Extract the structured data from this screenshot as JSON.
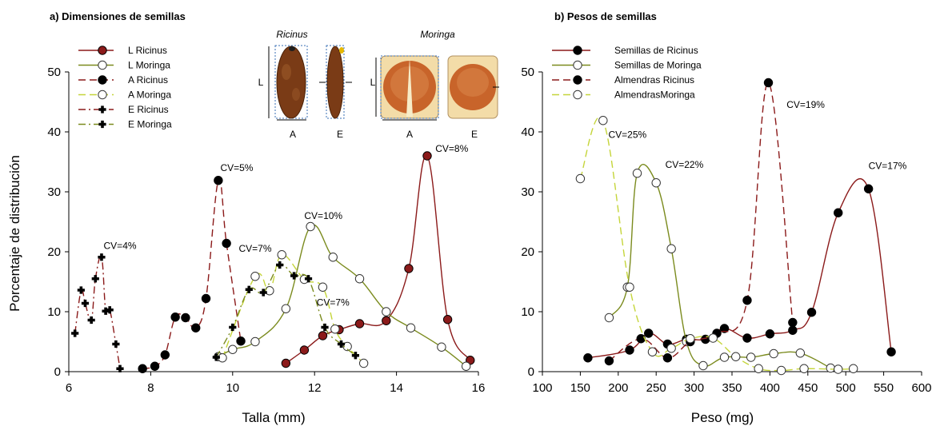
{
  "chart_data": [
    {
      "type": "line",
      "title": "a) Dimensiones de semillas",
      "xlabel": "Talla (mm)",
      "ylabel": "Porcentaje de distribución",
      "xlim": [
        6,
        16
      ],
      "ylim": [
        0,
        50
      ],
      "xticks": [
        "6",
        "8",
        "10",
        "12",
        "14",
        "16"
      ],
      "yticks": [
        "0",
        "10",
        "20",
        "30",
        "40",
        "50"
      ],
      "legend_position": "top-left",
      "series": [
        {
          "name": "L Ricinus",
          "color": "#8B1A1A",
          "dash": "solid",
          "marker": "filled-red",
          "x": [
            11.3,
            11.75,
            12.2,
            12.6,
            13.1,
            13.75,
            14.3,
            14.75,
            15.25,
            15.8
          ],
          "y": [
            1.4,
            3.6,
            6.0,
            7.0,
            8.0,
            8.5,
            17.2,
            36.0,
            8.7,
            1.9
          ]
        },
        {
          "name": "L Moringa",
          "color": "#7B8B1E",
          "dash": "solid",
          "marker": "open",
          "x": [
            9.65,
            10.0,
            10.55,
            11.3,
            11.9,
            12.45,
            13.1,
            13.75,
            14.35,
            15.1,
            15.7
          ],
          "y": [
            2.5,
            3.7,
            5.0,
            10.5,
            24.2,
            19.1,
            15.5,
            10.0,
            7.3,
            4.1,
            0.9
          ]
        },
        {
          "name": "A Ricinus",
          "color": "#8B1A1A",
          "dash": "long",
          "marker": "filled-black",
          "x": [
            7.8,
            8.1,
            8.35,
            8.6,
            8.85,
            9.1,
            9.35,
            9.65,
            9.85,
            10.2
          ],
          "y": [
            0.5,
            0.9,
            2.8,
            9.1,
            9.0,
            7.3,
            12.2,
            31.9,
            21.4,
            5.1
          ]
        },
        {
          "name": "A Moringa",
          "color": "#C5D53A",
          "dash": "long",
          "marker": "open",
          "x": [
            9.75,
            10.55,
            10.9,
            11.2,
            11.75,
            12.2,
            12.5,
            12.8,
            13.2
          ],
          "y": [
            2.3,
            15.9,
            13.5,
            19.5,
            15.4,
            14.1,
            7.1,
            4.2,
            1.4
          ]
        },
        {
          "name": "E Ricinus",
          "color": "#8B1A1A",
          "dash": "dashdot",
          "marker": "cross",
          "x": [
            6.15,
            6.3,
            6.4,
            6.55,
            6.65,
            6.8,
            6.9,
            7.0,
            7.15,
            7.25
          ],
          "y": [
            6.4,
            13.6,
            11.4,
            8.6,
            15.5,
            19.1,
            10.1,
            10.3,
            4.6,
            0.5
          ]
        },
        {
          "name": "E Moringa",
          "color": "#7B8B1E",
          "dash": "dashdot",
          "marker": "cross",
          "x": [
            9.6,
            10.0,
            10.4,
            10.75,
            11.15,
            11.5,
            11.85,
            12.25,
            12.65,
            13.0
          ],
          "y": [
            2.4,
            7.4,
            13.7,
            13.2,
            17.8,
            16.0,
            15.5,
            7.4,
            4.6,
            2.7
          ]
        }
      ],
      "annotations": [
        {
          "text": "CV=4%",
          "x": 6.85,
          "y": 20.5
        },
        {
          "text": "CV=5%",
          "x": 9.7,
          "y": 33.5
        },
        {
          "text": "CV=10%",
          "x": 11.75,
          "y": 25.5
        },
        {
          "text": "CV=7%",
          "x": 10.15,
          "y": 20.0
        },
        {
          "text": "CV=7%",
          "x": 12.05,
          "y": 11.0
        },
        {
          "text": "CV=8%",
          "x": 14.95,
          "y": 36.7
        }
      ],
      "inset": {
        "ricinus_label": "Ricinus",
        "moringa_label": "Moringa",
        "L": "L",
        "A": "A",
        "E": "E"
      }
    },
    {
      "type": "line",
      "title": "b) Pesos de semillas",
      "xlabel": "Peso (mg)",
      "ylabel": "",
      "xlim": [
        100,
        600
      ],
      "ylim": [
        0,
        50
      ],
      "xticks": [
        "100",
        "150",
        "200",
        "250",
        "300",
        "350",
        "400",
        "450",
        "500",
        "550",
        "600"
      ],
      "yticks": [
        "0",
        "10",
        "20",
        "30",
        "40",
        "50"
      ],
      "legend_position": "top-left",
      "series": [
        {
          "name": "Semillas de Ricinus",
          "color": "#8B1A1A",
          "dash": "solid",
          "marker": "filled-black",
          "x": [
            160,
            215,
            240,
            265,
            290,
            315,
            340,
            370,
            400,
            430,
            455,
            490,
            530,
            560
          ],
          "y": [
            2.3,
            3.6,
            6.4,
            4.6,
            5.4,
            5.4,
            7.2,
            5.6,
            6.3,
            6.9,
            9.9,
            26.5,
            30.5,
            3.3
          ]
        },
        {
          "name": "Semillas de Moringa",
          "color": "#7B8B1E",
          "dash": "solid",
          "marker": "open",
          "x": [
            188,
            212,
            225,
            250,
            270,
            290,
            312,
            340,
            375,
            405,
            440,
            480
          ],
          "y": [
            9.0,
            14.1,
            33.1,
            31.5,
            20.5,
            5.0,
            1.0,
            2.4,
            2.4,
            3.0,
            3.1,
            0.6
          ]
        },
        {
          "name": "Almendras Ricinus",
          "color": "#8B1A1A",
          "dash": "long",
          "marker": "filled-black",
          "x": [
            188,
            230,
            265,
            295,
            330,
            370,
            398,
            430
          ],
          "y": [
            1.8,
            5.5,
            2.3,
            5.0,
            6.4,
            11.9,
            48.2,
            8.2
          ]
        },
        {
          "name": "AlmendrasMoringa",
          "color": "#C5D53A",
          "dash": "long",
          "marker": "open",
          "x": [
            150,
            180,
            215,
            245,
            270,
            295,
            325,
            355,
            385,
            415,
            445,
            490,
            510
          ],
          "y": [
            32.2,
            41.9,
            14.1,
            3.3,
            3.9,
            5.5,
            5.6,
            2.5,
            0.5,
            0.2,
            0.5,
            0.4,
            0.5
          ]
        }
      ],
      "annotations": [
        {
          "text": "CV=25%",
          "x": 187,
          "y": 39.0
        },
        {
          "text": "CV=22%",
          "x": 262,
          "y": 34.0
        },
        {
          "text": "CV=19%",
          "x": 422,
          "y": 44.0
        },
        {
          "text": "CV=17%",
          "x": 530,
          "y": 33.8
        }
      ]
    }
  ]
}
